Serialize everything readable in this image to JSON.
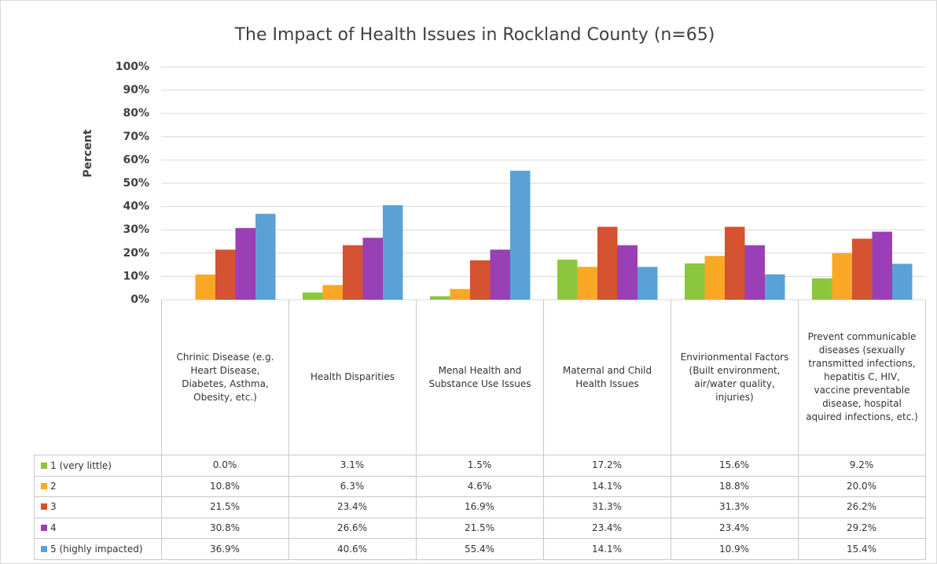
{
  "chart_data": {
    "type": "bar",
    "title": "The Impact of Health Issues in Rockland County (n=65)",
    "y_label": "Percent",
    "categories": [
      "Chrinic Disease (e.g. Heart Disease, Diabetes, Asthma, Obesity, etc.)",
      "Health Disparities",
      "Menal Health and Substance Use Issues",
      "Maternal and Child Health Issues",
      "Envirionmental Factors (Built environment, air/water quality, injuries)",
      "Prevent communicable diseases (sexually transmitted infections, hepatitis C, HIV, vaccine preventable disease, hospital aquired infections, etc.)"
    ],
    "series": [
      {
        "name": "1 (very little)",
        "color": "#8cc63e",
        "values": [
          0.0,
          3.1,
          1.5,
          17.2,
          15.6,
          9.2
        ],
        "value_labels": [
          "0.0%",
          "3.1%",
          "1.5%",
          "17.2%",
          "15.6%",
          "9.2%"
        ]
      },
      {
        "name": "2",
        "color": "#f9a825",
        "values": [
          10.8,
          6.3,
          4.6,
          14.1,
          18.8,
          20.0
        ],
        "value_labels": [
          "10.8%",
          "6.3%",
          "4.6%",
          "14.1%",
          "18.8%",
          "20.0%"
        ]
      },
      {
        "name": "3",
        "color": "#d4522f",
        "values": [
          21.5,
          23.4,
          16.9,
          31.3,
          31.3,
          26.2
        ],
        "value_labels": [
          "21.5%",
          "23.4%",
          "16.9%",
          "31.3%",
          "31.3%",
          "26.2%"
        ]
      },
      {
        "name": "4",
        "color": "#9a3fb6",
        "values": [
          30.8,
          26.6,
          21.5,
          23.4,
          23.4,
          29.2
        ],
        "value_labels": [
          "30.8%",
          "26.6%",
          "21.5%",
          "23.4%",
          "23.4%",
          "29.2%"
        ]
      },
      {
        "name": "5 (highly impacted)",
        "color": "#5aa2d5",
        "values": [
          36.9,
          40.6,
          55.4,
          14.1,
          10.9,
          15.4
        ],
        "value_labels": [
          "36.9%",
          "40.6%",
          "55.4%",
          "14.1%",
          "10.9%",
          "15.4%"
        ]
      }
    ],
    "ylim": [
      0,
      100
    ],
    "yticks": [
      {
        "value": 0,
        "label": "0%"
      },
      {
        "value": 10,
        "label": "10%"
      },
      {
        "value": 20,
        "label": "20%"
      },
      {
        "value": 30,
        "label": "30%"
      },
      {
        "value": 40,
        "label": "40%"
      },
      {
        "value": 50,
        "label": "50%"
      },
      {
        "value": 60,
        "label": "60%"
      },
      {
        "value": 70,
        "label": "70%"
      },
      {
        "value": 80,
        "label": "80%"
      },
      {
        "value": 90,
        "label": "90%"
      },
      {
        "value": 100,
        "label": "100%"
      }
    ],
    "grid": true
  }
}
